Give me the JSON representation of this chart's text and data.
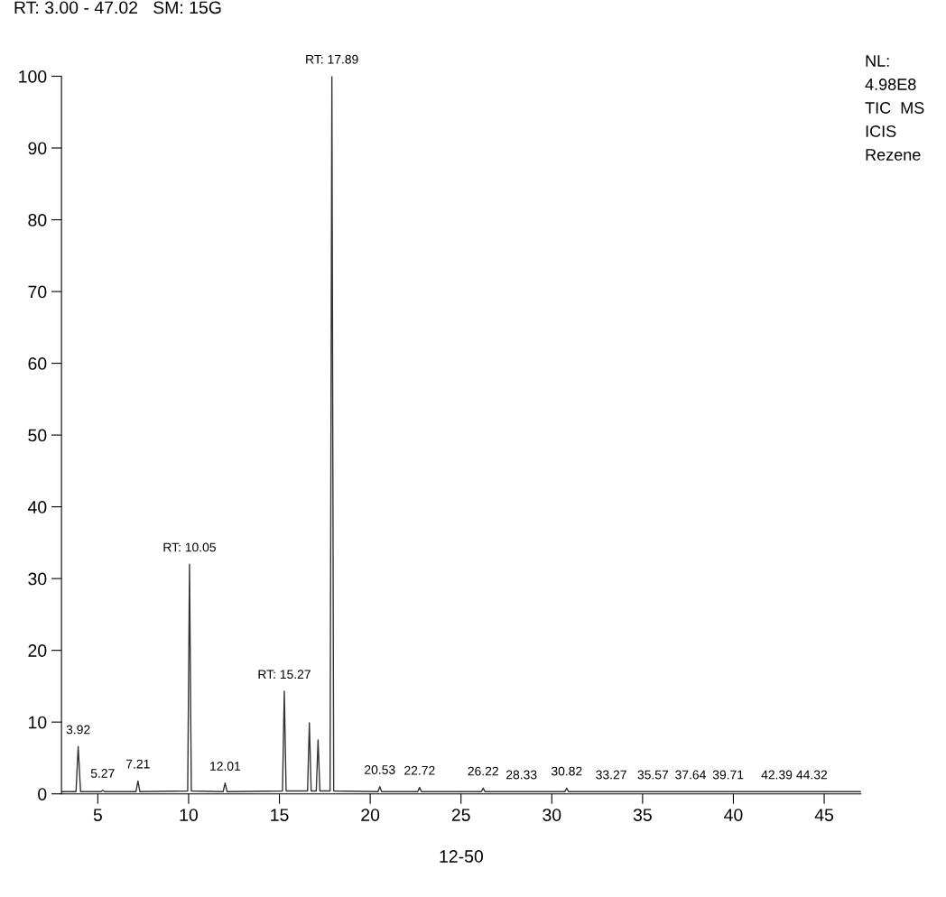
{
  "chart_data": {
    "type": "line",
    "title": "RT: 3.00 - 47.02   SM: 15G",
    "xlabel": "12-50",
    "xlim": [
      3,
      47.02
    ],
    "ylim": [
      0,
      100
    ],
    "xticks": [
      5,
      10,
      15,
      20,
      25,
      30,
      35,
      40,
      45
    ],
    "yticks": [
      0,
      10,
      20,
      30,
      40,
      50,
      60,
      70,
      80,
      90,
      100
    ],
    "grid": false,
    "legend": false,
    "marker": "none",
    "line_style": "solid",
    "series": [
      {
        "color": "#333333",
        "x": [
          3.0,
          3.8,
          3.92,
          4.05,
          5.17,
          5.27,
          5.37,
          7.1,
          7.21,
          7.32,
          9.95,
          10.05,
          10.15,
          11.9,
          12.01,
          12.12,
          15.17,
          15.27,
          15.37,
          16.55,
          16.65,
          16.75,
          17.03,
          17.13,
          17.23,
          17.79,
          17.89,
          17.99,
          20.43,
          20.53,
          20.63,
          22.62,
          22.72,
          22.82,
          26.12,
          26.22,
          26.32,
          30.72,
          30.82,
          30.92,
          47.02
        ],
        "values": [
          0.3,
          0.3,
          6.6,
          0.3,
          0.3,
          0.5,
          0.3,
          0.3,
          1.8,
          0.3,
          0.4,
          32,
          0.4,
          0.3,
          1.5,
          0.3,
          0.4,
          14.3,
          0.4,
          0.4,
          9.9,
          0.4,
          0.4,
          7.5,
          0.4,
          0.4,
          100,
          0.4,
          0.3,
          1.0,
          0.3,
          0.3,
          0.9,
          0.3,
          0.3,
          0.8,
          0.3,
          0.3,
          0.8,
          0.3,
          0.3
        ]
      }
    ],
    "annotations": [
      {
        "text": "3.92",
        "x": 3.92,
        "y": 6.6
      },
      {
        "text": "5.27",
        "x": 5.27,
        "y": 0.5
      },
      {
        "text": "7.21",
        "x": 7.21,
        "y": 1.8
      },
      {
        "text": "RT: 10.05",
        "x": 10.05,
        "y": 32
      },
      {
        "text": "12.01",
        "x": 12.01,
        "y": 1.5
      },
      {
        "text": "RT: 15.27",
        "x": 15.27,
        "y": 14.3
      },
      {
        "text": "RT: 17.89",
        "x": 17.89,
        "y": 100
      },
      {
        "text": "20.53",
        "x": 20.53,
        "y": 1.0
      },
      {
        "text": "22.72",
        "x": 22.72,
        "y": 0.9
      },
      {
        "text": "26.22",
        "x": 26.22,
        "y": 0.8
      },
      {
        "text": "28.33",
        "x": 28.33,
        "y": 0.3
      },
      {
        "text": "30.82",
        "x": 30.82,
        "y": 0.8
      },
      {
        "text": "33.27",
        "x": 33.27,
        "y": 0.3
      },
      {
        "text": "35.57",
        "x": 35.57,
        "y": 0.3
      },
      {
        "text": "37.64",
        "x": 37.64,
        "y": 0.3
      },
      {
        "text": "39.71",
        "x": 39.71,
        "y": 0.3
      },
      {
        "text": "42.39",
        "x": 42.39,
        "y": 0.3
      },
      {
        "text": "44.32",
        "x": 44.32,
        "y": 0.3
      },
      "NL:\n4.98E8\nTIC  MS\nICIS\nRezene"
    ]
  }
}
